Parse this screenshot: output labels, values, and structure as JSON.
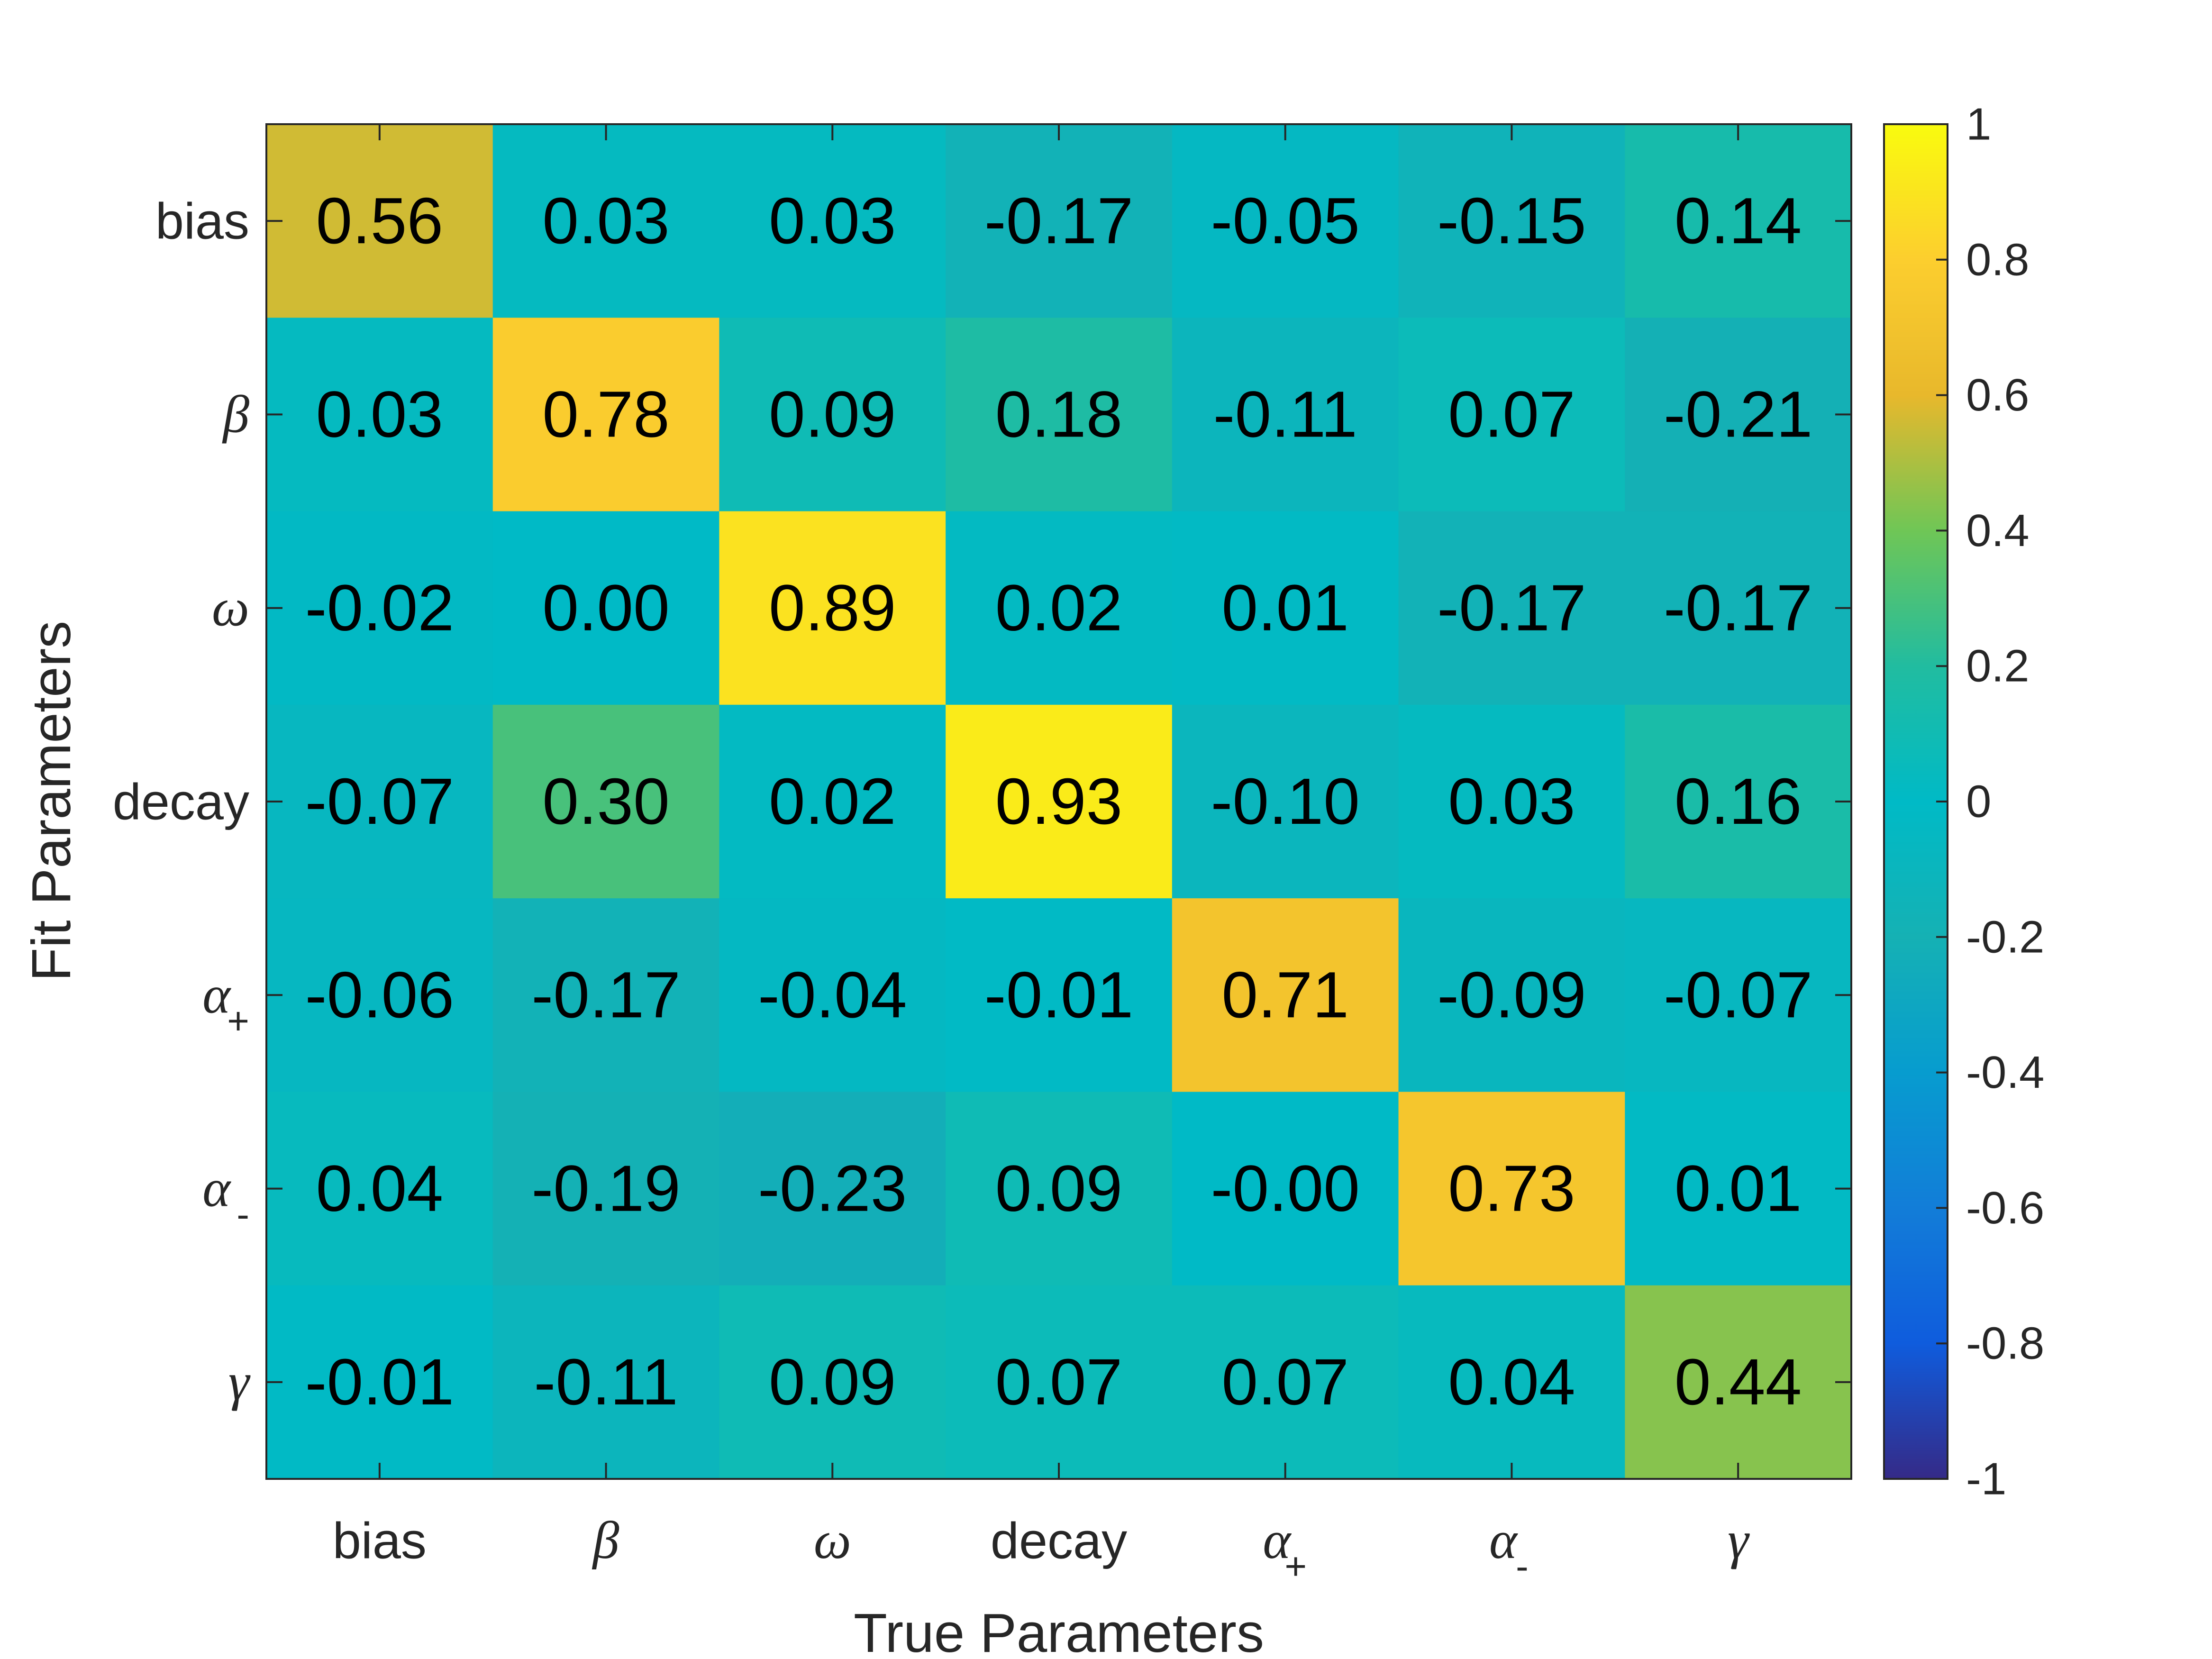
{
  "chart_data": {
    "type": "heatmap",
    "title": "",
    "xlabel": "True Parameters",
    "ylabel": "Fit Parameters",
    "x_categories": [
      {
        "text": "bias"
      },
      {
        "symbol": "β"
      },
      {
        "symbol": "ω"
      },
      {
        "text": "decay"
      },
      {
        "symbol": "α",
        "sub": "+"
      },
      {
        "symbol": "α",
        "sub": "-"
      },
      {
        "symbol": "γ"
      }
    ],
    "y_categories": [
      {
        "text": "bias"
      },
      {
        "symbol": "β"
      },
      {
        "symbol": "ω"
      },
      {
        "text": "decay"
      },
      {
        "symbol": "α",
        "sub": "+"
      },
      {
        "symbol": "α",
        "sub": "-"
      },
      {
        "symbol": "γ"
      }
    ],
    "values": [
      [
        0.56,
        0.03,
        0.03,
        -0.17,
        -0.05,
        -0.15,
        0.14
      ],
      [
        0.03,
        0.78,
        0.09,
        0.18,
        -0.11,
        0.07,
        -0.21
      ],
      [
        -0.02,
        0.0,
        0.89,
        0.02,
        0.01,
        -0.17,
        -0.17
      ],
      [
        -0.07,
        0.3,
        0.02,
        0.93,
        -0.1,
        0.03,
        0.16
      ],
      [
        -0.06,
        -0.17,
        -0.04,
        -0.01,
        0.71,
        -0.09,
        -0.07
      ],
      [
        0.04,
        -0.19,
        -0.23,
        0.09,
        -0.0,
        0.73,
        0.01
      ],
      [
        -0.01,
        -0.11,
        0.09,
        0.07,
        0.07,
        0.04,
        0.44
      ]
    ],
    "cell_labels": [
      [
        "0.56",
        "0.03",
        "0.03",
        "-0.17",
        "-0.05",
        "-0.15",
        "0.14"
      ],
      [
        "0.03",
        "0.78",
        "0.09",
        "0.18",
        "-0.11",
        "0.07",
        "-0.21"
      ],
      [
        "-0.02",
        "0.00",
        "0.89",
        "0.02",
        "0.01",
        "-0.17",
        "-0.17"
      ],
      [
        "-0.07",
        "0.30",
        "0.02",
        "0.93",
        "-0.10",
        "0.03",
        "0.16"
      ],
      [
        "-0.06",
        "-0.17",
        "-0.04",
        "-0.01",
        "0.71",
        "-0.09",
        "-0.07"
      ],
      [
        "0.04",
        "-0.19",
        "-0.23",
        "0.09",
        "-0.00",
        "0.73",
        "0.01"
      ],
      [
        "-0.01",
        "-0.11",
        "0.09",
        "0.07",
        "0.07",
        "0.04",
        "0.44"
      ]
    ],
    "colorbar": {
      "colormap": "parula",
      "range": [
        -1,
        1
      ],
      "ticks": [
        1,
        0.8,
        0.6,
        0.4,
        0.2,
        0,
        -0.2,
        -0.4,
        -0.6,
        -0.8,
        -1
      ],
      "tick_labels": [
        "1",
        "0.8",
        "0.6",
        "0.4",
        "0.2",
        "0",
        "-0.2",
        "-0.4",
        "-0.6",
        "-0.8",
        "-1"
      ],
      "placement": "right"
    },
    "grid": false
  }
}
